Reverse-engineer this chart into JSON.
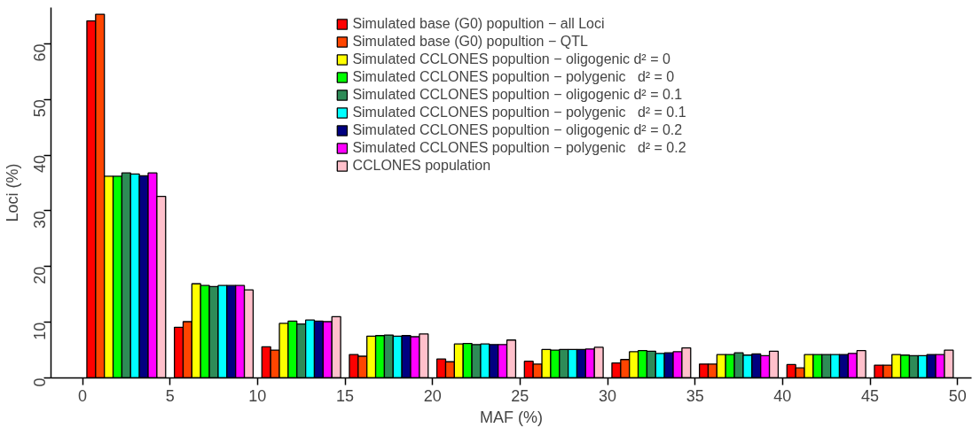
{
  "chart_data": {
    "type": "bar",
    "xlabel": "MAF (%)",
    "ylabel": "Loci (%)",
    "x": [
      2.5,
      7.5,
      12.5,
      17.5,
      22.5,
      27.5,
      32.5,
      37.5,
      42.5,
      47.5
    ],
    "xlim": [
      -1.8,
      50.8
    ],
    "xticks": [
      0,
      5,
      10,
      15,
      20,
      25,
      30,
      35,
      40,
      45,
      50
    ],
    "ylim": [
      0,
      66.5
    ],
    "yticks": [
      0,
      10,
      20,
      30,
      40,
      50,
      60
    ],
    "grid": false,
    "legend": "top",
    "series": [
      {
        "name": "Simulated base (G0) popultion − all Loci",
        "color": "#ff0000",
        "values": [
          64.1,
          9.1,
          5.6,
          4.2,
          3.4,
          3.0,
          2.7,
          2.5,
          2.4,
          2.3
        ]
      },
      {
        "name": "Simulated base (G0) popultion − QTL",
        "color": "#ff4500",
        "values": [
          65.3,
          10.1,
          5.0,
          3.9,
          2.9,
          2.5,
          3.3,
          2.5,
          1.8,
          2.3
        ]
      },
      {
        "name": "Simulated CCLONES popultion − oligogenic d² = 0",
        "color": "#ffff00",
        "values": [
          36.2,
          16.9,
          9.8,
          7.5,
          6.1,
          5.1,
          4.7,
          4.2,
          4.2,
          4.2
        ]
      },
      {
        "name": "Simulated CCLONES popultion − polygenic   d² = 0",
        "color": "#00ff00",
        "values": [
          36.2,
          16.6,
          10.2,
          7.6,
          6.2,
          5.0,
          4.9,
          4.2,
          4.2,
          4.1
        ]
      },
      {
        "name": "Simulated CCLONES popultion − oligogenic d² = 0.1",
        "color": "#2e8b57",
        "values": [
          36.8,
          16.4,
          9.7,
          7.7,
          6.0,
          5.1,
          4.8,
          4.5,
          4.2,
          4.0
        ]
      },
      {
        "name": "Simulated CCLONES popultion − polygenic   d² = 0.1",
        "color": "#00ffff",
        "values": [
          36.6,
          16.6,
          10.4,
          7.5,
          6.1,
          5.1,
          4.4,
          4.1,
          4.2,
          4.0
        ]
      },
      {
        "name": "Simulated CCLONES popultion − oligogenic d² = 0.2",
        "color": "#000080",
        "values": [
          36.3,
          16.6,
          10.2,
          7.6,
          6.0,
          5.1,
          4.5,
          4.3,
          4.2,
          4.2
        ]
      },
      {
        "name": "Simulated CCLONES popultion − polygenic   d² = 0.2",
        "color": "#ff00ff",
        "values": [
          36.8,
          16.6,
          10.1,
          7.4,
          6.0,
          5.2,
          4.7,
          4.0,
          4.4,
          4.2
        ]
      },
      {
        "name": "CCLONES population",
        "color": "#ffc0cb",
        "values": [
          32.6,
          15.8,
          11.0,
          7.9,
          6.8,
          5.5,
          5.4,
          4.8,
          4.9,
          5.0
        ]
      }
    ]
  }
}
